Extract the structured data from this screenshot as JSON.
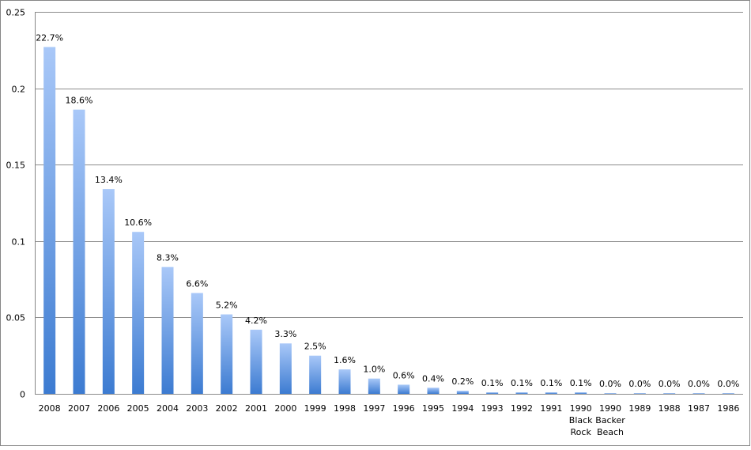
{
  "chart_data": {
    "type": "bar",
    "categories": [
      "2008",
      "2007",
      "2006",
      "2005",
      "2004",
      "2003",
      "2002",
      "2001",
      "2000",
      "1999",
      "1998",
      "1997",
      "1996",
      "1995",
      "1994",
      "1993",
      "1992",
      "1991",
      "1990 Black Rock",
      "1990 Backer Beach",
      "1989",
      "1988",
      "1987",
      "1986"
    ],
    "category_label_lines": [
      [
        "2008"
      ],
      [
        "2007"
      ],
      [
        "2006"
      ],
      [
        "2005"
      ],
      [
        "2004"
      ],
      [
        "2003"
      ],
      [
        "2002"
      ],
      [
        "2001"
      ],
      [
        "2000"
      ],
      [
        "1999"
      ],
      [
        "1998"
      ],
      [
        "1997"
      ],
      [
        "1996"
      ],
      [
        "1995"
      ],
      [
        "1994"
      ],
      [
        "1993"
      ],
      [
        "1992"
      ],
      [
        "1991"
      ],
      [
        "1990",
        "Black",
        "Rock"
      ],
      [
        "1990",
        "Backer",
        "Beach"
      ],
      [
        "1989"
      ],
      [
        "1988"
      ],
      [
        "1987"
      ],
      [
        "1986"
      ]
    ],
    "values": [
      0.227,
      0.186,
      0.134,
      0.106,
      0.083,
      0.066,
      0.052,
      0.042,
      0.033,
      0.025,
      0.016,
      0.01,
      0.006,
      0.004,
      0.002,
      0.001,
      0.001,
      0.001,
      0.001,
      0.0004,
      0.0004,
      0.0003,
      0.0002,
      0.0002
    ],
    "data_labels": [
      "22.7%",
      "18.6%",
      "13.4%",
      "10.6%",
      "8.3%",
      "6.6%",
      "5.2%",
      "4.2%",
      "3.3%",
      "2.5%",
      "1.6%",
      "1.0%",
      "0.6%",
      "0.4%",
      "0.2%",
      "0.1%",
      "0.1%",
      "0.1%",
      "0.1%",
      "0.0%",
      "0.0%",
      "0.0%",
      "0.0%",
      "0.0%"
    ],
    "yticks": [
      "0",
      "0.05",
      "0.1",
      "0.15",
      "0.2",
      "0.25"
    ],
    "ylim": [
      0,
      0.25
    ],
    "grid": true,
    "colors": {
      "bar_top": "#a9c8f8",
      "bar_bottom": "#3c7bd1",
      "grid": "#8c8c8c",
      "axis": "#868686"
    }
  }
}
